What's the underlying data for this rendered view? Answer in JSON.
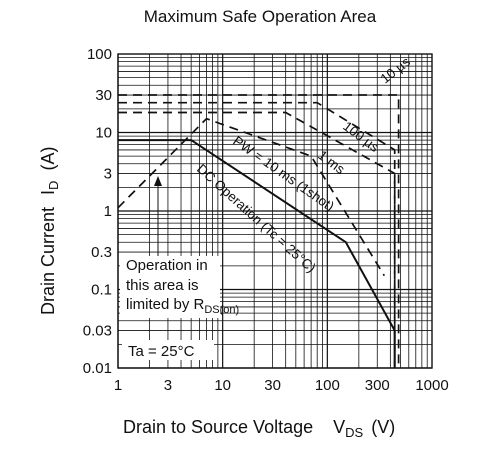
{
  "chart_data": {
    "type": "line",
    "title": "Maximum Safe Operation Area",
    "xlabel": "Drain to Source Voltage",
    "xlabel_symbol": "V",
    "xlabel_sub": "DS",
    "xlabel_unit": "(V)",
    "ylabel": "Drain Current",
    "ylabel_symbol": "I",
    "ylabel_sub": "D",
    "ylabel_unit": "(A)",
    "x_scale": "log",
    "y_scale": "log",
    "xlim": [
      1,
      1000
    ],
    "ylim": [
      0.01,
      100
    ],
    "x_ticks": [
      1,
      3,
      10,
      30,
      100,
      300,
      1000
    ],
    "x_tick_labels": [
      "1",
      "3",
      "10",
      "30",
      "100",
      "300",
      "1000"
    ],
    "y_ticks": [
      0.01,
      0.03,
      0.1,
      0.3,
      1,
      3,
      10,
      30,
      100
    ],
    "y_tick_labels": [
      "0.01",
      "0.03",
      "0.1",
      "0.3",
      "1",
      "3",
      "10",
      "30",
      "100"
    ],
    "grid": true,
    "series": [
      {
        "name": "10 µs",
        "style": "dashed",
        "points": [
          [
            1,
            30
          ],
          [
            480,
            30
          ],
          [
            480,
            0.01
          ]
        ]
      },
      {
        "name": "100 µs",
        "style": "dashed",
        "points": [
          [
            1,
            24
          ],
          [
            80,
            24
          ],
          [
            440,
            6
          ],
          [
            440,
            0.01
          ]
        ]
      },
      {
        "name": "1 ms",
        "style": "dashed",
        "points": [
          [
            1,
            18
          ],
          [
            40,
            18
          ],
          [
            440,
            3
          ],
          [
            440,
            0.01
          ]
        ]
      },
      {
        "name": "PW = 10 ms (1shot)",
        "style": "dashed",
        "points": [
          [
            1,
            1.1
          ],
          [
            7,
            15
          ],
          [
            70,
            5
          ],
          [
            350,
            0.15
          ]
        ]
      },
      {
        "name": "DC Operation (Tc = 25°C)",
        "style": "solid",
        "points": [
          [
            1,
            8
          ],
          [
            5,
            8
          ],
          [
            150,
            0.4
          ],
          [
            440,
            0.03
          ],
          [
            440,
            0.01
          ]
        ]
      }
    ],
    "annotations": {
      "region_line1": "Operation in",
      "region_line2": "this area is",
      "region_line3": "limited by R",
      "region_sub": "DS(on)",
      "ambient": "Ta = 25°C"
    },
    "curve_labels": {
      "pw10us": "10 µs",
      "pw100us": "100 µs",
      "pw1ms": "1 ms",
      "pw10ms": "PW = 10 ms (1shot)",
      "dc": "DC Operation (Tc = 25°C)"
    }
  }
}
